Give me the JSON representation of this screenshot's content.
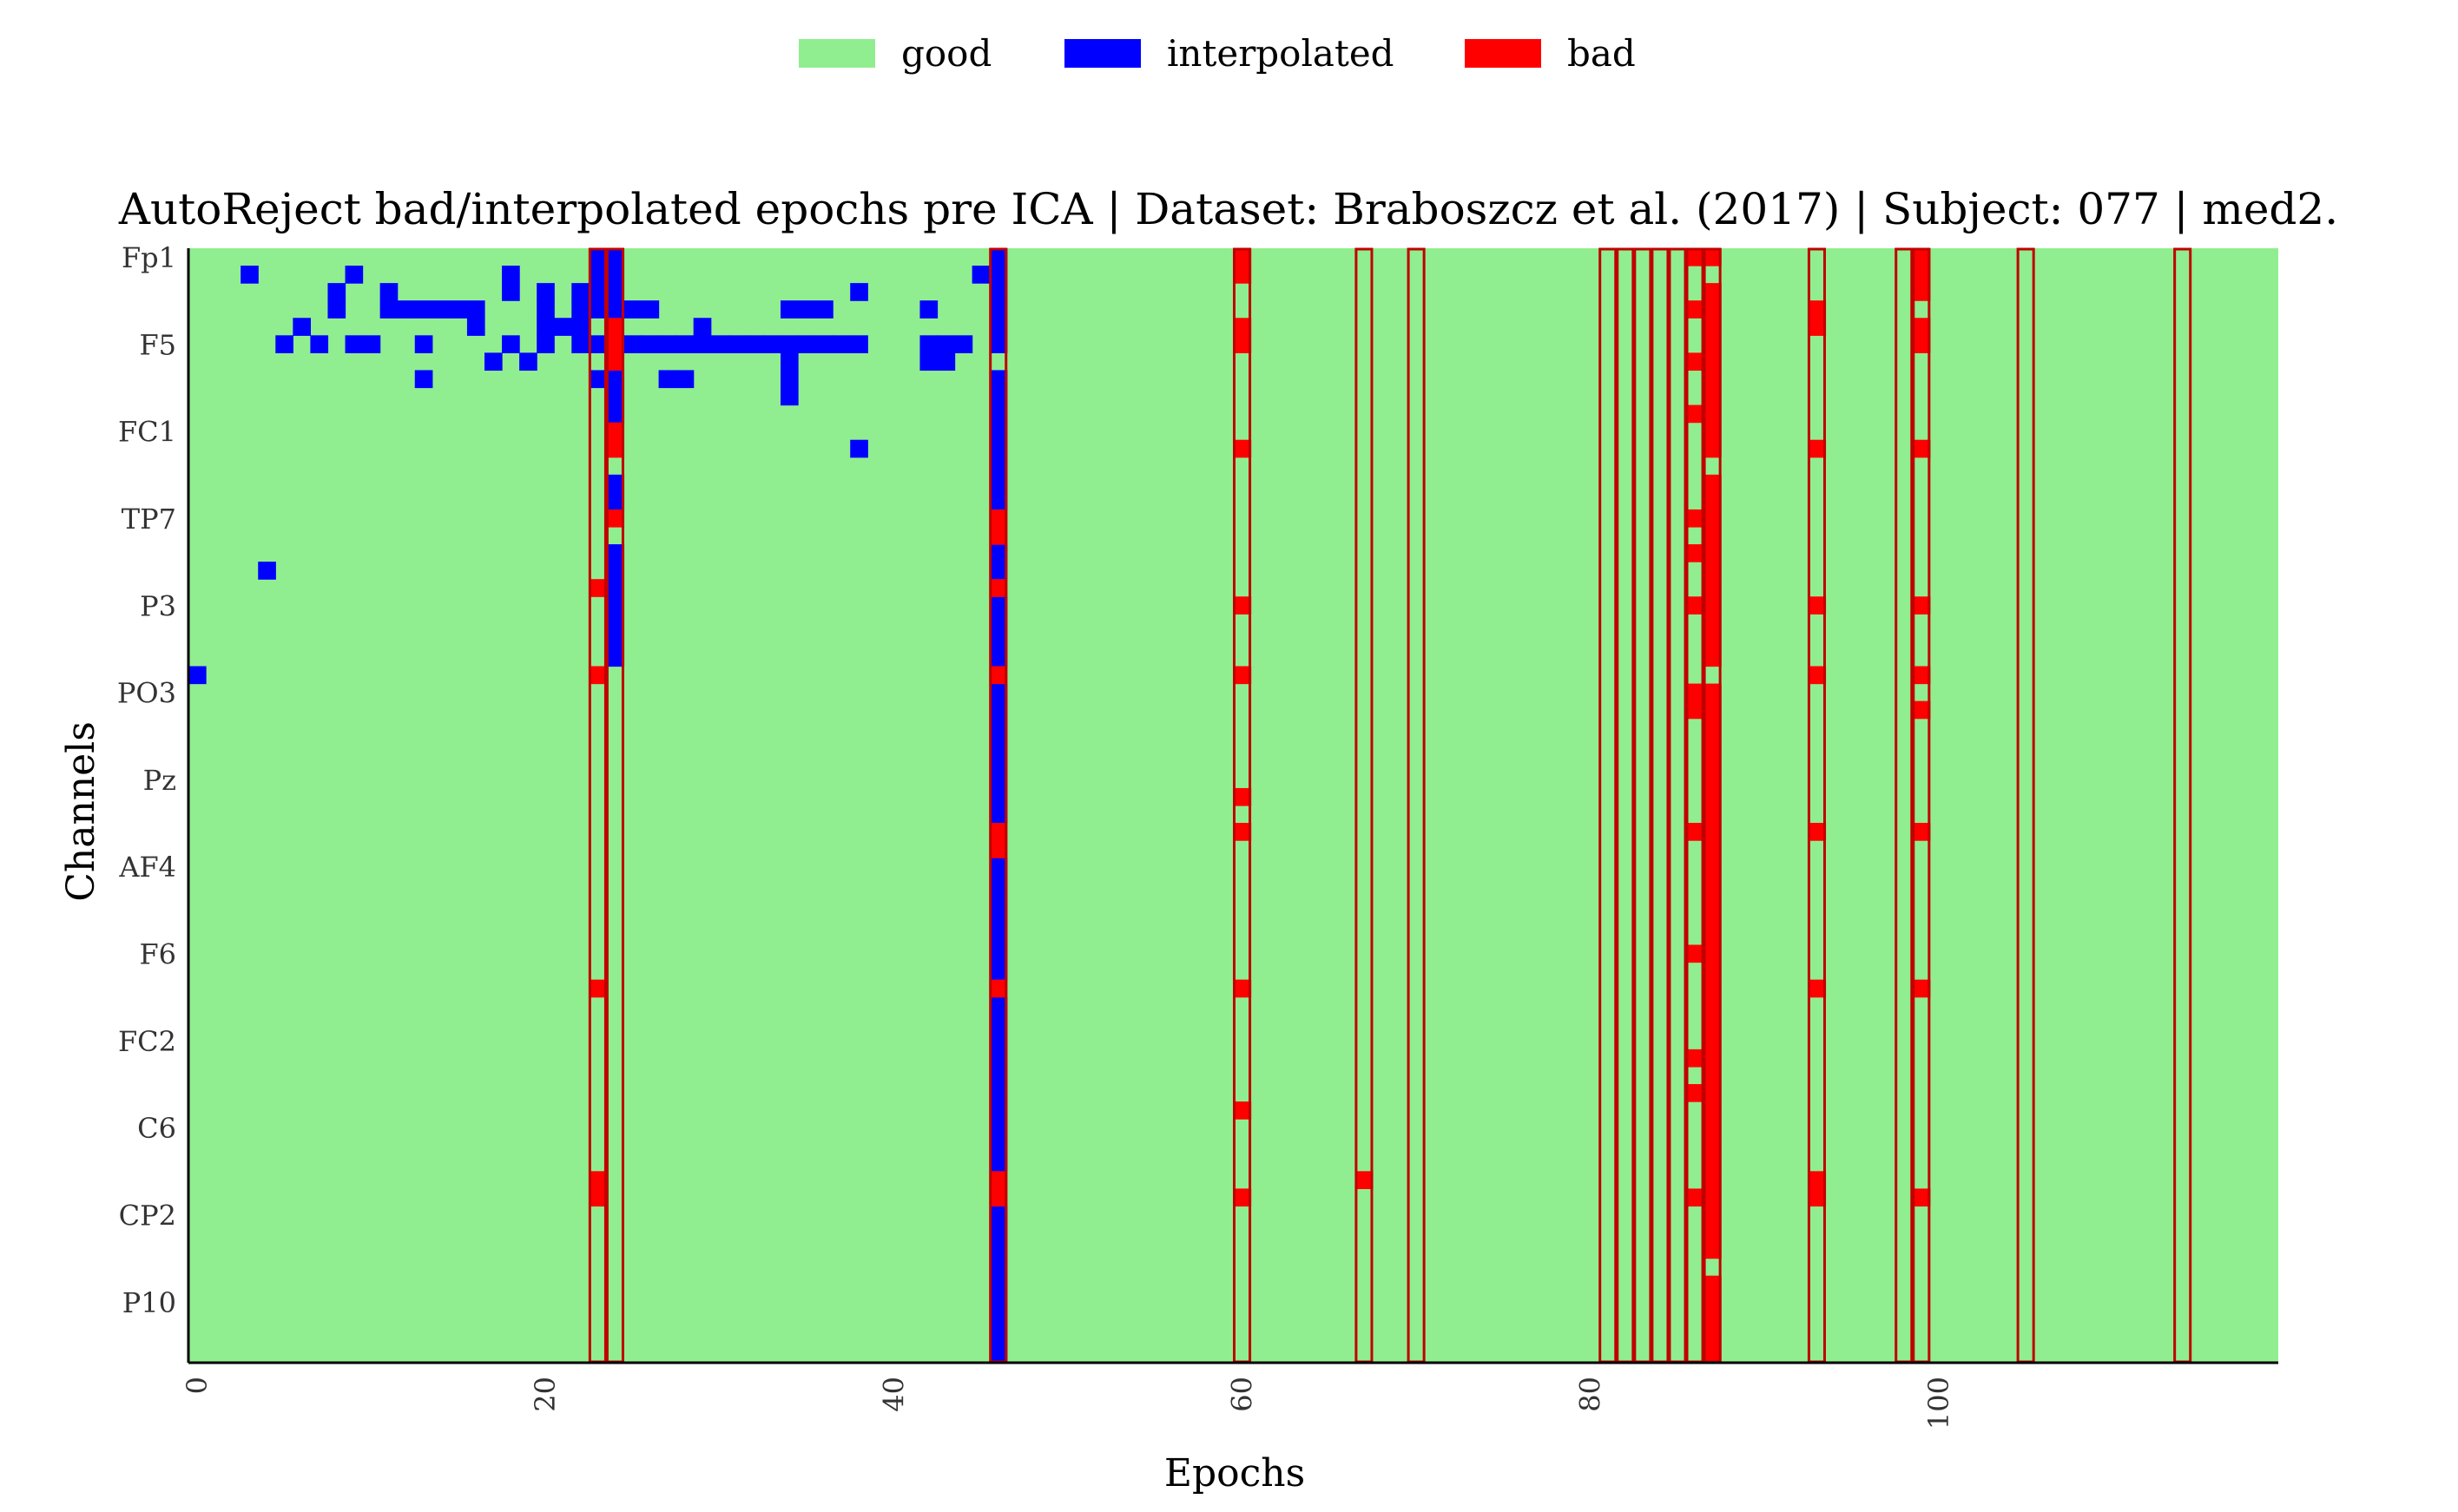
{
  "chart_data": {
    "type": "heatmap",
    "title": "AutoReject bad/interpolated epochs pre ICA | Dataset: Braboszcz et al. (2017) | Subject: 077 | med2.",
    "xlabel": "Epochs",
    "ylabel": "Channels",
    "x_ticks": [
      0,
      20,
      40,
      60,
      80,
      100
    ],
    "xlim": [
      0,
      120
    ],
    "y_tick_labels": [
      "Fp1",
      "F5",
      "FC1",
      "TP7",
      "P3",
      "PO3",
      "Pz",
      "AF4",
      "F6",
      "FC2",
      "C6",
      "CP2",
      "P10"
    ],
    "n_channels": 64,
    "legend": [
      {
        "label": "good",
        "color": "#90ee90"
      },
      {
        "label": "interpolated",
        "color": "#0000ff"
      },
      {
        "label": "bad",
        "color": "#ff0000"
      }
    ],
    "legend_position": "top-center",
    "colors": {
      "good": "#90ee90",
      "interpolated": "#0000ff",
      "bad": "#ff0000",
      "bad_epoch_outline": "#c00000"
    },
    "bad_epochs": [
      23,
      24,
      46,
      60,
      67,
      70,
      81,
      82,
      83,
      84,
      85,
      86,
      87,
      93,
      98,
      99,
      105,
      114
    ],
    "bad_channel_cells": [
      {
        "epoch": 24,
        "channels": [
          4,
          5,
          6,
          10,
          11,
          15
        ]
      },
      {
        "epoch": 23,
        "channels": [
          19,
          24,
          42,
          53,
          54
        ]
      },
      {
        "epoch": 46,
        "channels": [
          15,
          16,
          19,
          24,
          33,
          34,
          42,
          53,
          54
        ]
      },
      {
        "epoch": 60,
        "channels": [
          0,
          1,
          4,
          5,
          11,
          20,
          24,
          31,
          33,
          42,
          49,
          54
        ]
      },
      {
        "epoch": 67,
        "channels": [
          53
        ]
      },
      {
        "epoch": 86,
        "channels": [
          0,
          3,
          6,
          9,
          15,
          17,
          20,
          25,
          26,
          33,
          40,
          46,
          48,
          54
        ]
      },
      {
        "epoch": 87,
        "channels": [
          0,
          2,
          3,
          4,
          5,
          6,
          7,
          8,
          9,
          10,
          11,
          13,
          14,
          15,
          16,
          17,
          18,
          19,
          20,
          21,
          22,
          23,
          25,
          26,
          27,
          28,
          29,
          30,
          31,
          32,
          33,
          34,
          35,
          36,
          37,
          38,
          39,
          40,
          41,
          42,
          43,
          44,
          45,
          46,
          47,
          48,
          49,
          50,
          51,
          52,
          53,
          54,
          55,
          56,
          57,
          59,
          60,
          61,
          62,
          63
        ]
      },
      {
        "epoch": 93,
        "channels": [
          3,
          4,
          11,
          20,
          24,
          33,
          42,
          53,
          54
        ]
      },
      {
        "epoch": 99,
        "channels": [
          0,
          1,
          2,
          4,
          5,
          11,
          20,
          24,
          26,
          33,
          42,
          54
        ]
      }
    ],
    "interpolated_cells": [
      [
        0,
        24
      ],
      [
        3,
        1
      ],
      [
        4,
        18
      ],
      [
        5,
        5
      ],
      [
        6,
        4
      ],
      [
        7,
        5
      ],
      [
        8,
        2
      ],
      [
        8,
        3
      ],
      [
        9,
        1
      ],
      [
        9,
        5
      ],
      [
        10,
        5
      ],
      [
        11,
        2
      ],
      [
        11,
        3
      ],
      [
        12,
        3
      ],
      [
        13,
        3
      ],
      [
        13,
        5
      ],
      [
        13,
        7
      ],
      [
        14,
        3
      ],
      [
        15,
        3
      ],
      [
        16,
        3
      ],
      [
        16,
        4
      ],
      [
        17,
        6
      ],
      [
        18,
        1
      ],
      [
        18,
        2
      ],
      [
        18,
        5
      ],
      [
        19,
        6
      ],
      [
        20,
        2
      ],
      [
        20,
        3
      ],
      [
        20,
        4
      ],
      [
        20,
        5
      ],
      [
        21,
        4
      ],
      [
        22,
        2
      ],
      [
        22,
        3
      ],
      [
        22,
        4
      ],
      [
        22,
        5
      ],
      [
        23,
        0
      ],
      [
        23,
        1
      ],
      [
        23,
        2
      ],
      [
        23,
        3
      ],
      [
        23,
        5
      ],
      [
        23,
        7
      ],
      [
        24,
        0
      ],
      [
        24,
        1
      ],
      [
        24,
        2
      ],
      [
        24,
        3
      ],
      [
        24,
        7
      ],
      [
        24,
        8
      ],
      [
        24,
        9
      ],
      [
        24,
        13
      ],
      [
        24,
        14
      ],
      [
        24,
        17
      ],
      [
        24,
        18
      ],
      [
        24,
        19
      ],
      [
        24,
        20
      ],
      [
        24,
        21
      ],
      [
        24,
        22
      ],
      [
        24,
        23
      ],
      [
        25,
        3
      ],
      [
        25,
        5
      ],
      [
        26,
        3
      ],
      [
        26,
        5
      ],
      [
        27,
        5
      ],
      [
        27,
        7
      ],
      [
        28,
        5
      ],
      [
        28,
        7
      ],
      [
        29,
        4
      ],
      [
        29,
        5
      ],
      [
        30,
        5
      ],
      [
        31,
        5
      ],
      [
        32,
        5
      ],
      [
        33,
        5
      ],
      [
        34,
        3
      ],
      [
        34,
        5
      ],
      [
        34,
        6
      ],
      [
        34,
        7
      ],
      [
        34,
        8
      ],
      [
        35,
        3
      ],
      [
        35,
        5
      ],
      [
        36,
        3
      ],
      [
        36,
        5
      ],
      [
        37,
        5
      ],
      [
        38,
        2
      ],
      [
        38,
        5
      ],
      [
        38,
        11
      ],
      [
        42,
        3
      ],
      [
        42,
        5
      ],
      [
        42,
        6
      ],
      [
        43,
        5
      ],
      [
        43,
        6
      ],
      [
        44,
        5
      ],
      [
        45,
        1
      ],
      [
        46,
        0
      ],
      [
        46,
        1
      ],
      [
        46,
        2
      ],
      [
        46,
        3
      ],
      [
        46,
        4
      ],
      [
        46,
        5
      ],
      [
        46,
        7
      ],
      [
        46,
        8
      ],
      [
        46,
        9
      ],
      [
        46,
        10
      ],
      [
        46,
        11
      ],
      [
        46,
        12
      ],
      [
        46,
        13
      ],
      [
        46,
        14
      ],
      [
        46,
        17
      ],
      [
        46,
        18
      ],
      [
        46,
        20
      ],
      [
        46,
        21
      ],
      [
        46,
        22
      ],
      [
        46,
        23
      ],
      [
        46,
        25
      ],
      [
        46,
        26
      ],
      [
        46,
        27
      ],
      [
        46,
        28
      ],
      [
        46,
        29
      ],
      [
        46,
        30
      ],
      [
        46,
        31
      ],
      [
        46,
        32
      ],
      [
        46,
        35
      ],
      [
        46,
        36
      ],
      [
        46,
        37
      ],
      [
        46,
        38
      ],
      [
        46,
        39
      ],
      [
        46,
        40
      ],
      [
        46,
        41
      ],
      [
        46,
        43
      ],
      [
        46,
        44
      ],
      [
        46,
        45
      ],
      [
        46,
        46
      ],
      [
        46,
        47
      ],
      [
        46,
        48
      ],
      [
        46,
        49
      ],
      [
        46,
        50
      ],
      [
        46,
        51
      ],
      [
        46,
        52
      ],
      [
        46,
        55
      ],
      [
        46,
        56
      ],
      [
        46,
        57
      ],
      [
        46,
        58
      ],
      [
        46,
        59
      ],
      [
        46,
        60
      ],
      [
        46,
        61
      ],
      [
        46,
        62
      ],
      [
        46,
        63
      ]
    ]
  }
}
